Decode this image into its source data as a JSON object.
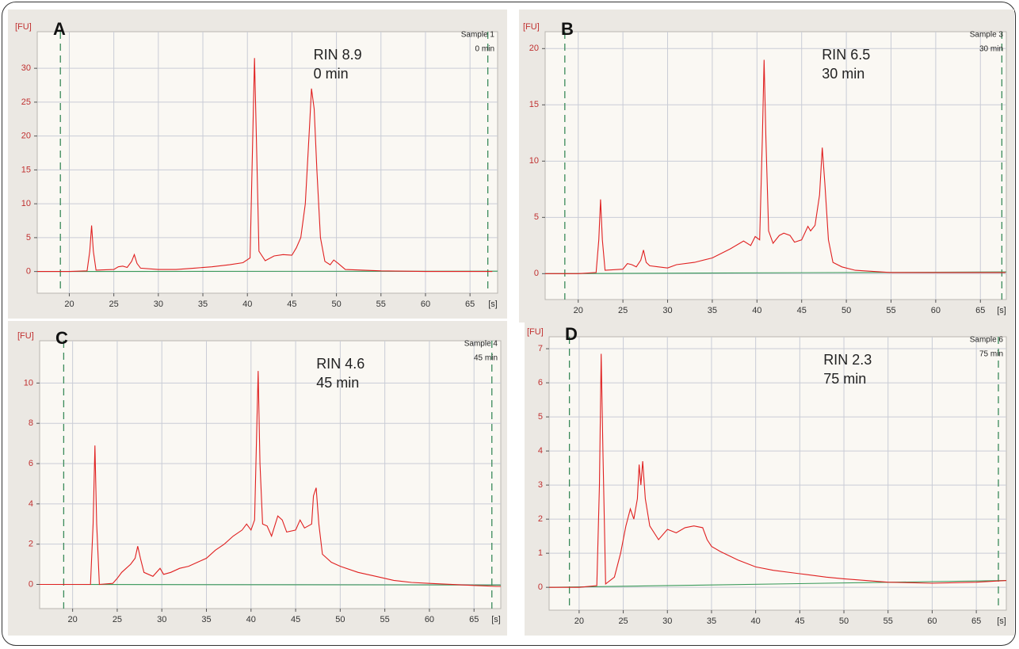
{
  "chart_data": [
    {
      "type": "line",
      "panel": "A",
      "sample": "Sample 1",
      "sample_time": "0 min",
      "annotation": [
        "RIN 8.9",
        "0 min"
      ],
      "y_label": "[FU]",
      "x_label": "[s]",
      "xlim": [
        16.4,
        68.1
      ],
      "ylim": [
        -3.2,
        35.4
      ],
      "xticks": [
        20,
        25,
        30,
        35,
        40,
        45,
        50,
        55,
        60,
        65
      ],
      "yticks": [
        0,
        5,
        10,
        15,
        20,
        25,
        30
      ],
      "grid": true,
      "markers": [
        19.0,
        67.0
      ],
      "series": [
        {
          "color": "#e02020",
          "x": [
            16.4,
            20,
            22,
            22.3,
            22.5,
            22.7,
            23,
            25,
            25.5,
            26,
            26.5,
            27,
            27.3,
            27.6,
            28,
            30,
            32,
            34,
            36,
            38,
            39.5,
            40.3,
            40.6,
            40.8,
            41,
            41.3,
            42,
            43,
            44,
            45,
            45.5,
            46,
            46.5,
            47,
            47.2,
            47.5,
            47.8,
            48.2,
            48.7,
            49.3,
            49.7,
            50.2,
            51,
            55,
            60,
            65,
            67.5
          ],
          "values": [
            0,
            0,
            0.1,
            3,
            6.8,
            3,
            0.2,
            0.3,
            0.7,
            0.8,
            0.6,
            1.5,
            2.5,
            1.2,
            0.5,
            0.3,
            0.3,
            0.5,
            0.7,
            1.0,
            1.3,
            2,
            20,
            31.5,
            20,
            3,
            1.6,
            2.3,
            2.5,
            2.4,
            3.5,
            5,
            10,
            22,
            27,
            24,
            15,
            5,
            1.5,
            1,
            1.7,
            1.2,
            0.3,
            0.1,
            0,
            0,
            0
          ]
        },
        {
          "color": "#3a9a5a",
          "x": [
            16.4,
            68.1
          ],
          "values": [
            0,
            0.05
          ]
        }
      ]
    },
    {
      "type": "line",
      "panel": "B",
      "sample": "Sample 3",
      "sample_time": "30 min",
      "annotation": [
        "RIN 6.5",
        "30 min"
      ],
      "y_label": "[FU]",
      "x_label": "[s]",
      "xlim": [
        16.3,
        67.9
      ],
      "ylim": [
        -2.3,
        21.5
      ],
      "xticks": [
        20,
        25,
        30,
        35,
        40,
        45,
        50,
        55,
        60,
        65
      ],
      "yticks": [
        0,
        5,
        10,
        15,
        20
      ],
      "grid": true,
      "markers": [
        18.5,
        67.4
      ],
      "series": [
        {
          "color": "#e02020",
          "x": [
            16.3,
            20,
            22,
            22.3,
            22.5,
            22.7,
            23,
            25,
            25.5,
            26,
            26.5,
            27,
            27.3,
            27.6,
            28,
            29,
            30,
            31,
            33,
            35,
            37,
            38.5,
            39.3,
            39.8,
            40.3,
            40.6,
            40.8,
            41,
            41.3,
            41.8,
            42.5,
            43,
            43.7,
            44.2,
            45,
            45.7,
            46,
            46.5,
            47,
            47.3,
            47.6,
            48,
            48.5,
            49.5,
            51,
            55,
            60,
            65,
            67.8
          ],
          "values": [
            0,
            0,
            0.1,
            3,
            6.6,
            3,
            0.3,
            0.4,
            0.9,
            0.8,
            0.6,
            1.2,
            2.1,
            1.0,
            0.7,
            0.6,
            0.5,
            0.8,
            1.0,
            1.4,
            2.2,
            2.9,
            2.5,
            3.3,
            3.0,
            12,
            19,
            12,
            3.8,
            2.7,
            3.4,
            3.6,
            3.4,
            2.8,
            3.0,
            4.2,
            3.8,
            4.3,
            7,
            11.2,
            8,
            3,
            1,
            0.6,
            0.3,
            0.1,
            0.1,
            0.1,
            0.1
          ]
        },
        {
          "color": "#3a9a5a",
          "x": [
            16.3,
            67.9
          ],
          "values": [
            0,
            0.15
          ]
        }
      ]
    },
    {
      "type": "line",
      "panel": "C",
      "sample": "Sample 4",
      "sample_time": "45 min",
      "annotation": [
        "RIN 4.6",
        "45 min"
      ],
      "y_label": "[FU]",
      "x_label": "[s]",
      "xlim": [
        16.3,
        68.0
      ],
      "ylim": [
        -1.2,
        12.1
      ],
      "xticks": [
        20,
        25,
        30,
        35,
        40,
        45,
        50,
        55,
        60,
        65
      ],
      "yticks": [
        0,
        2,
        4,
        6,
        8,
        10
      ],
      "grid": true,
      "markers": [
        19.0,
        67.0
      ],
      "series": [
        {
          "color": "#e02020",
          "x": [
            16.3,
            22,
            22.3,
            22.5,
            22.7,
            23,
            24.5,
            25,
            25.5,
            26,
            26.5,
            27,
            27.3,
            27.6,
            28,
            29,
            29.8,
            30.2,
            31,
            32,
            33,
            34,
            35,
            36,
            37,
            38,
            39,
            39.5,
            40,
            40.4,
            40.6,
            40.8,
            41,
            41.3,
            41.8,
            42.3,
            43,
            43.5,
            44,
            45,
            45.5,
            46,
            46.8,
            47,
            47.3,
            47.6,
            48,
            49,
            50,
            52,
            54,
            56,
            58,
            60,
            65,
            67.5,
            68
          ],
          "values": [
            0,
            0,
            3,
            6.9,
            3,
            0,
            0.05,
            0.3,
            0.6,
            0.8,
            1.0,
            1.3,
            1.9,
            1.3,
            0.6,
            0.4,
            0.8,
            0.5,
            0.6,
            0.8,
            0.9,
            1.1,
            1.3,
            1.7,
            2.0,
            2.4,
            2.7,
            3.0,
            2.7,
            3.2,
            7,
            10.6,
            6,
            3,
            2.9,
            2.4,
            3.4,
            3.2,
            2.6,
            2.7,
            3.2,
            2.8,
            3,
            4.4,
            4.8,
            3,
            1.5,
            1.1,
            0.9,
            0.6,
            0.4,
            0.2,
            0.1,
            0.05,
            -0.05,
            -0.1,
            -0.1
          ]
        },
        {
          "color": "#3a9a5a",
          "x": [
            16.3,
            68.0
          ],
          "values": [
            0,
            -0.03
          ]
        }
      ]
    },
    {
      "type": "line",
      "panel": "D",
      "sample": "Sample 6",
      "sample_time": "75 min",
      "annotation": [
        "RIN 2.3",
        "75 min"
      ],
      "y_label": "[FU]",
      "x_label": "[s]",
      "xlim": [
        16.6,
        68.4
      ],
      "ylim": [
        -0.67,
        7.35
      ],
      "xticks": [
        20,
        25,
        30,
        35,
        40,
        45,
        50,
        55,
        60,
        65
      ],
      "yticks": [
        0,
        1,
        2,
        3,
        4,
        5,
        6,
        7
      ],
      "grid": true,
      "markers": [
        18.9,
        67.5
      ],
      "series": [
        {
          "color": "#e02020",
          "x": [
            16.6,
            20,
            22,
            22.3,
            22.5,
            22.7,
            23,
            24,
            24.7,
            25.3,
            25.8,
            26.2,
            26.6,
            26.8,
            27,
            27.2,
            27.5,
            28,
            29,
            30,
            31,
            32,
            33,
            34,
            34.5,
            35,
            36,
            38,
            40,
            42,
            45,
            48,
            50,
            55,
            60,
            65,
            68.4
          ],
          "values": [
            0,
            0,
            0.05,
            3,
            6.85,
            4,
            0.1,
            0.3,
            1.0,
            1.8,
            2.3,
            2.0,
            2.6,
            3.6,
            3.0,
            3.7,
            2.6,
            1.8,
            1.4,
            1.7,
            1.6,
            1.75,
            1.8,
            1.75,
            1.4,
            1.2,
            1.05,
            0.8,
            0.6,
            0.5,
            0.4,
            0.3,
            0.25,
            0.15,
            0.12,
            0.15,
            0.2
          ]
        },
        {
          "color": "#3a9a5a",
          "x": [
            16.6,
            68.4
          ],
          "values": [
            0,
            0.2
          ]
        }
      ]
    }
  ]
}
